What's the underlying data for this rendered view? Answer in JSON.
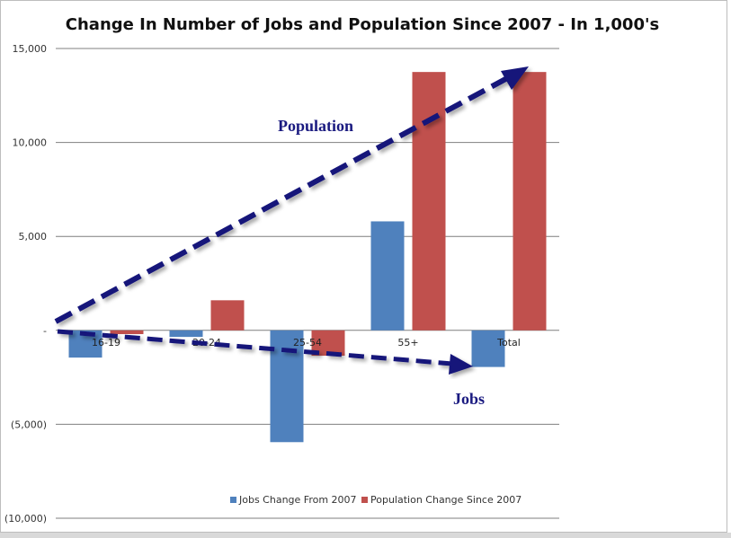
{
  "chart_data": {
    "type": "bar",
    "title": "Change In Number of Jobs and Population  Since 2007 - In 1,000's",
    "xlabel": "",
    "ylabel": "",
    "categories": [
      "16-19",
      "20-24",
      "25-54",
      "55+",
      "Total"
    ],
    "series": [
      {
        "name": "Jobs Change From 2007",
        "values": [
          -1450,
          -350,
          -5950,
          5800,
          -1950
        ],
        "color": "#4f81bd"
      },
      {
        "name": "Population Change Since 2007",
        "values": [
          -200,
          1600,
          -1350,
          13750,
          13750
        ],
        "color": "#c0504d"
      }
    ],
    "ylim": [
      -10000,
      15000
    ],
    "yticks": [
      15000,
      10000,
      5000,
      0,
      -5000,
      -10000
    ],
    "ytick_labels": [
      "15,000",
      "10,000",
      "5,000",
      "-",
      "(5,000)",
      "(10,000)"
    ],
    "grid": true,
    "legend_position": "bottom",
    "annotations": [
      {
        "text": "Population",
        "color": "#1a1a80"
      },
      {
        "text": "Jobs",
        "color": "#1a1a80"
      }
    ],
    "arrow_color": "#12127a"
  }
}
